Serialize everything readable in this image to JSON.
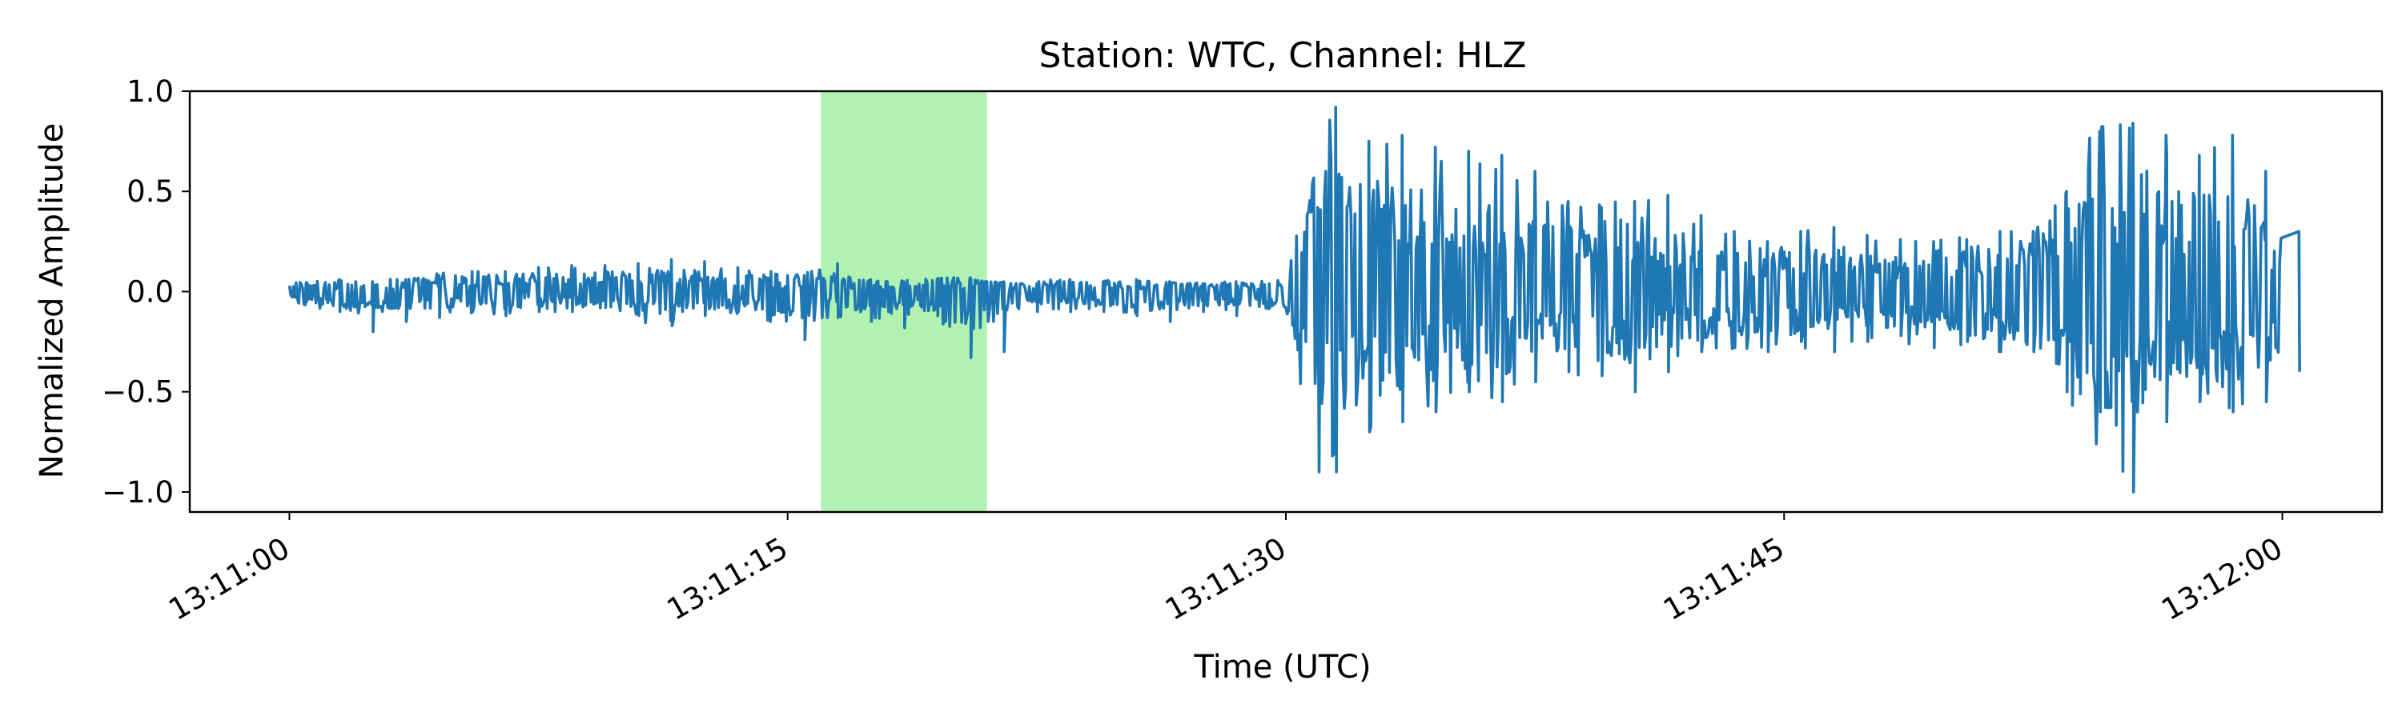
{
  "chart_data": {
    "type": "line",
    "title": "Station: WTC, Channel: HLZ",
    "xlabel": "Time (UTC)",
    "ylabel": "Normalized Amplitude",
    "xlim": [
      "13:10:57",
      "13:12:03"
    ],
    "ylim": [
      -1.1,
      1.0
    ],
    "x_ticks": [
      "13:11:00",
      "13:11:15",
      "13:11:30",
      "13:11:45",
      "13:12:00"
    ],
    "y_ticks": [
      1.0,
      0.5,
      0.0,
      -0.5,
      -1.0
    ],
    "y_tick_labels": [
      "1.0",
      "0.5",
      "0.0",
      "−0.5",
      "−1.0"
    ],
    "highlight": {
      "start": "13:11:16",
      "end": "13:11:21",
      "color": "#b2f2b0"
    },
    "grid": false,
    "legend": "none",
    "series": [
      {
        "color": "#1f77b4",
        "x": [
          "13:11:00",
          "13:11:01",
          "13:11:02",
          "13:11:03",
          "13:11:04",
          "13:11:05",
          "13:11:06",
          "13:11:07",
          "13:11:08",
          "13:11:09",
          "13:11:10",
          "13:11:11",
          "13:11:12",
          "13:11:13",
          "13:11:14",
          "13:11:15",
          "13:11:16",
          "13:11:17",
          "13:11:18",
          "13:11:19",
          "13:11:20",
          "13:11:21",
          "13:11:22",
          "13:11:23",
          "13:11:24",
          "13:11:25",
          "13:11:26",
          "13:11:27",
          "13:11:28",
          "13:11:29",
          "13:11:30",
          "13:11:31",
          "13:11:32",
          "13:11:33",
          "13:11:34",
          "13:11:35",
          "13:11:36",
          "13:11:37",
          "13:11:38",
          "13:11:39",
          "13:11:40",
          "13:11:41",
          "13:11:42",
          "13:11:43",
          "13:11:44",
          "13:11:45",
          "13:11:46",
          "13:11:47",
          "13:11:48",
          "13:11:49",
          "13:11:50",
          "13:11:51",
          "13:11:52",
          "13:11:53",
          "13:11:54",
          "13:11:55",
          "13:11:56",
          "13:11:57",
          "13:11:58",
          "13:11:59",
          "13:12:00"
        ],
        "max": [
          0.04,
          0.06,
          0.05,
          0.06,
          0.08,
          0.1,
          0.1,
          0.12,
          0.13,
          0.13,
          0.14,
          0.16,
          0.15,
          0.12,
          0.1,
          0.08,
          0.14,
          0.06,
          0.05,
          0.06,
          0.07,
          0.05,
          0.04,
          0.06,
          0.05,
          0.06,
          0.05,
          0.04,
          0.05,
          0.04,
          0.08,
          0.92,
          0.75,
          0.78,
          0.72,
          0.7,
          0.68,
          0.6,
          0.45,
          0.42,
          0.45,
          0.48,
          0.38,
          0.3,
          0.25,
          0.3,
          0.32,
          0.28,
          0.26,
          0.25,
          0.26,
          0.3,
          0.3,
          0.5,
          0.8,
          0.84,
          0.78,
          0.68,
          0.78,
          0.6,
          0.3
        ],
        "min": [
          -0.05,
          -0.1,
          -0.2,
          -0.15,
          -0.13,
          -0.1,
          -0.12,
          -0.1,
          -0.1,
          -0.08,
          -0.12,
          -0.17,
          -0.12,
          -0.1,
          -0.12,
          -0.24,
          -0.13,
          -0.15,
          -0.18,
          -0.12,
          -0.33,
          -0.3,
          -0.1,
          -0.1,
          -0.1,
          -0.12,
          -0.15,
          -0.1,
          -0.12,
          -0.08,
          -0.12,
          -0.9,
          -0.7,
          -0.65,
          -0.6,
          -0.5,
          -0.55,
          -0.45,
          -0.4,
          -0.42,
          -0.5,
          -0.4,
          -0.3,
          -0.28,
          -0.3,
          -0.25,
          -0.3,
          -0.25,
          -0.22,
          -0.28,
          -0.25,
          -0.3,
          -0.3,
          -0.5,
          -0.6,
          -1.0,
          -0.65,
          -0.55,
          -0.6,
          -0.55,
          -0.4
        ]
      }
    ]
  }
}
